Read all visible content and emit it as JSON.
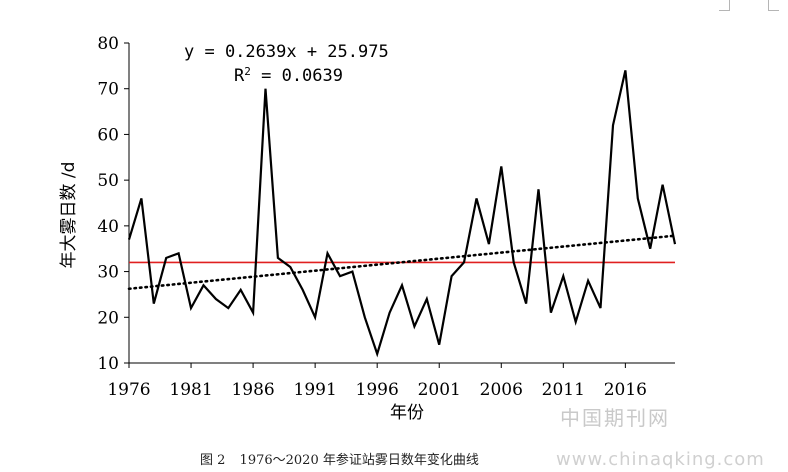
{
  "chart_data": {
    "type": "line",
    "xlabel": "年份",
    "ylabel": "年大雾日数 /d",
    "ylim": [
      10,
      80
    ],
    "yticks": [
      10,
      20,
      30,
      40,
      50,
      60,
      70,
      80
    ],
    "xlim": [
      1976,
      2020
    ],
    "xticks": [
      1976,
      1981,
      1986,
      1991,
      1996,
      2001,
      2006,
      2011,
      2016
    ],
    "grid": false,
    "series": [
      {
        "x": [
          1976,
          1977,
          1978,
          1979,
          1980,
          1981,
          1982,
          1983,
          1984,
          1985,
          1986,
          1987,
          1988,
          1989,
          1990,
          1991,
          1992,
          1993,
          1994,
          1995,
          1996,
          1997,
          1998,
          1999,
          2000,
          2001,
          2002,
          2003,
          2004,
          2005,
          2006,
          2007,
          2008,
          2009,
          2010,
          2011,
          2012,
          2013,
          2014,
          2015,
          2016,
          2017,
          2018,
          2019,
          2020
        ],
        "values": [
          37,
          46,
          23,
          33,
          34,
          22,
          27,
          24,
          22,
          26,
          21,
          70,
          33,
          31,
          26,
          20,
          34,
          29,
          30,
          20,
          12,
          21,
          27,
          18,
          24,
          14,
          29,
          32,
          46,
          36,
          53,
          32,
          23,
          48,
          21,
          29,
          19,
          28,
          22,
          62,
          74,
          46,
          35,
          49,
          36
        ],
        "color": "#000000"
      }
    ],
    "reference_line": {
      "value": 32,
      "color": "#e02020"
    },
    "trendline": {
      "slope": 0.2639,
      "intercept": 25.975,
      "style": "dotted",
      "equation": "y = 0.2639x + 25.975",
      "r2_label": "R",
      "r2_sup": "2",
      "r2_value": " = 0.0639"
    }
  },
  "caption": {
    "label": "图 2",
    "text": "1976～2020 年参证站雾日数年变化曲线"
  },
  "watermarks": {
    "cn": "中国期刊网",
    "url": "www.chinaqking.com"
  }
}
